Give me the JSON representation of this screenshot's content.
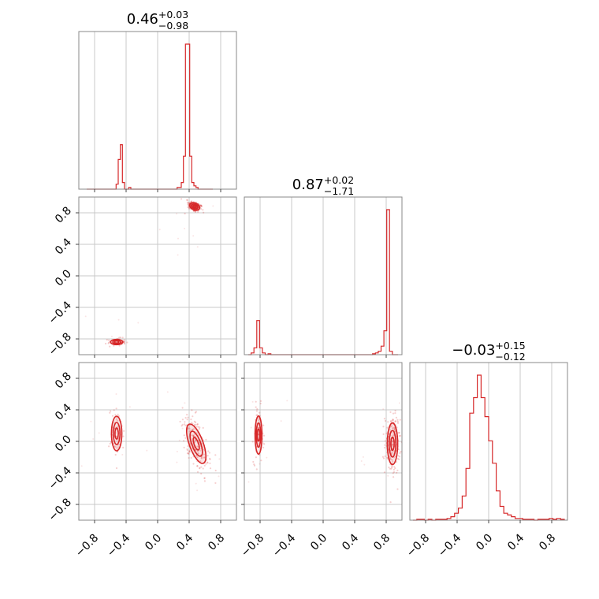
{
  "chart_data": {
    "type": "corner",
    "color": "#d62728",
    "grid": true,
    "range": [
      -1,
      1
    ],
    "tick_labels": [
      "−0.8",
      "−0.4",
      "0.0",
      "0.4",
      "0.8"
    ],
    "tick_values": [
      -0.8,
      -0.4,
      0.0,
      0.4,
      0.8
    ],
    "parameters": [
      {
        "median": "0.46",
        "plus": "+0.03",
        "minus": "−0.98",
        "hist_range": [
          -0.9,
          0.7
        ],
        "hist_values": [
          0,
          0,
          0,
          0,
          0,
          0,
          0,
          0,
          0,
          0,
          0,
          0,
          0,
          0,
          0.03,
          0.18,
          0.27,
          0.04,
          0,
          0,
          0.01,
          0,
          0,
          0,
          0,
          0,
          0,
          0,
          0,
          0,
          0,
          0,
          0,
          0,
          0,
          0,
          0,
          0,
          0,
          0,
          0,
          0,
          0,
          0.01,
          0.01,
          0.04,
          0.2,
          0.88,
          0.88,
          0.2,
          0.04,
          0.02,
          0.01,
          0,
          0,
          0,
          0,
          0,
          0,
          0
        ]
      },
      {
        "median": "0.87",
        "plus": "+0.02",
        "minus": "−1.71",
        "hist_range": [
          -0.95,
          0.95
        ],
        "hist_values": [
          0,
          0.01,
          0.04,
          0.2,
          0.04,
          0.01,
          0,
          0.005,
          0,
          0,
          0,
          0,
          0,
          0,
          0,
          0,
          0,
          0,
          0,
          0,
          0,
          0,
          0,
          0,
          0,
          0,
          0,
          0,
          0,
          0,
          0,
          0,
          0,
          0,
          0,
          0,
          0,
          0,
          0,
          0,
          0,
          0,
          0,
          0,
          0.005,
          0.01,
          0.02,
          0.05,
          0.14,
          0.85,
          0.02,
          0,
          0
        ]
      },
      {
        "median": "−0.03",
        "plus": "+0.15",
        "minus": "−0.12",
        "hist_range": [
          -0.96,
          0.96
        ],
        "hist_values": [
          0,
          0.005,
          0.005,
          0,
          0.005,
          0,
          0.005,
          0.005,
          0.005,
          0.01,
          0.02,
          0.04,
          0.07,
          0.14,
          0.3,
          0.62,
          0.71,
          0.84,
          0.71,
          0.6,
          0.46,
          0.33,
          0.17,
          0.08,
          0.04,
          0.03,
          0.02,
          0.01,
          0.01,
          0.005,
          0.005,
          0.005,
          0,
          0.005,
          0.005,
          0.005,
          0.01,
          0.005,
          0.01,
          0.005
        ]
      }
    ],
    "pairs": [
      {
        "row": 1,
        "col": 0,
        "modes": [
          {
            "x": 0.47,
            "y": 0.88,
            "sx": 0.03,
            "sy": 0.02,
            "rot": -25,
            "w": 0.78
          },
          {
            "x": -0.52,
            "y": -0.84,
            "sx": 0.035,
            "sy": 0.015,
            "rot": 0,
            "w": 0.22
          }
        ]
      },
      {
        "row": 2,
        "col": 0,
        "modes": [
          {
            "x": 0.49,
            "y": -0.03,
            "sx": 0.04,
            "sy": 0.12,
            "rot": 20,
            "w": 0.72
          },
          {
            "x": -0.52,
            "y": 0.1,
            "sx": 0.03,
            "sy": 0.1,
            "rot": 0,
            "w": 0.28
          }
        ]
      },
      {
        "row": 2,
        "col": 1,
        "modes": [
          {
            "x": 0.88,
            "y": -0.03,
            "sx": 0.03,
            "sy": 0.12,
            "rot": 0,
            "w": 0.72
          },
          {
            "x": -0.82,
            "y": 0.08,
            "sx": 0.02,
            "sy": 0.11,
            "rot": 0,
            "w": 0.28
          }
        ]
      }
    ]
  }
}
